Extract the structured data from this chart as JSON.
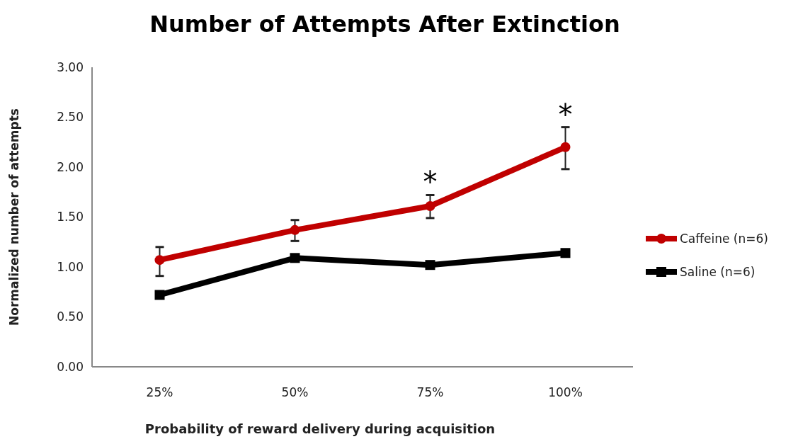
{
  "chart_data": {
    "type": "line",
    "title": "Number of Attempts After Extinction",
    "xlabel": "Probability of reward delivery during acquisition",
    "ylabel": "Normalized number of attempts",
    "categories": [
      "25%",
      "50%",
      "75%",
      "100%"
    ],
    "series": [
      {
        "name": "Caffeine (n=6)",
        "color": "#c00000",
        "marker": "circle",
        "values": [
          1.07,
          1.37,
          1.61,
          2.2
        ],
        "errors": [
          [
            0.91,
            1.2
          ],
          [
            1.26,
            1.47
          ],
          [
            1.49,
            1.72
          ],
          [
            1.98,
            2.4
          ]
        ]
      },
      {
        "name": "Saline (n=6)",
        "color": "#000000",
        "marker": "square",
        "values": [
          0.72,
          1.09,
          1.02,
          1.14
        ],
        "errors": [
          0.03,
          0.03,
          0.03,
          0.03
        ]
      }
    ],
    "ylim": [
      0,
      3
    ],
    "yticks": [
      {
        "value": 0,
        "label": "0.00"
      },
      {
        "value": 0.5,
        "label": "0.50"
      },
      {
        "value": 1,
        "label": "1.00"
      },
      {
        "value": 1.5,
        "label": "1.50"
      },
      {
        "value": 2,
        "label": "2.00"
      },
      {
        "value": 2.5,
        "label": "2.50"
      },
      {
        "value": 3,
        "label": "3.00"
      }
    ],
    "legend": "right",
    "line_style": "solid",
    "annotations": [
      {
        "text": "*",
        "x": "75%",
        "y": 1.72
      },
      {
        "text": "*",
        "x": "100%",
        "y": 2.4
      }
    ]
  }
}
